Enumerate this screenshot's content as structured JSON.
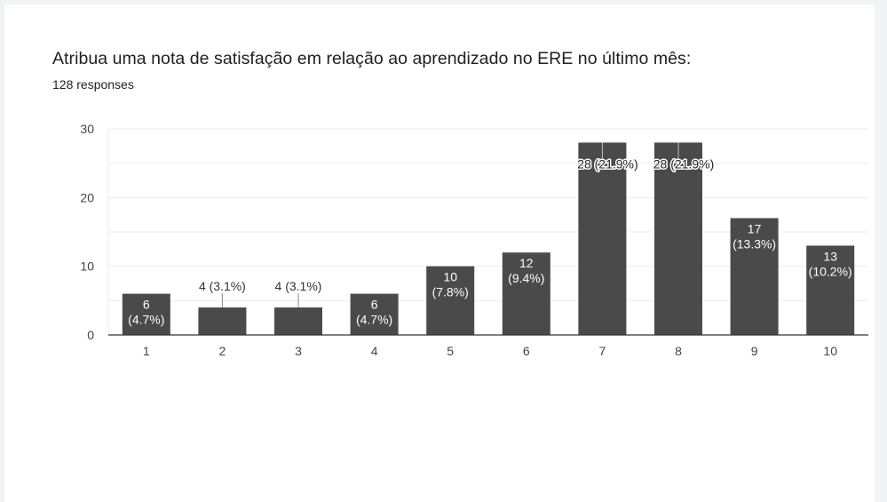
{
  "form_card": {
    "question_title": "Atribua uma nota de satisfação em relação ao aprendizado no ERE no último mês:",
    "response_count": "128 responses"
  },
  "chart_data": {
    "type": "bar",
    "title": "Atribua uma nota de satisfação em relação ao aprendizado no ERE no último mês:",
    "subtitle": "128 responses",
    "xlabel": "",
    "ylabel": "",
    "categories": [
      "1",
      "2",
      "3",
      "4",
      "5",
      "6",
      "7",
      "8",
      "9",
      "10"
    ],
    "values": [
      6,
      4,
      4,
      6,
      10,
      12,
      28,
      28,
      17,
      13
    ],
    "percentages": [
      "4.7%",
      "3.1%",
      "3.1%",
      "4.7%",
      "7.8%",
      "9.4%",
      "21.9%",
      "21.9%",
      "13.3%",
      "10.2%"
    ],
    "data_labels": [
      "6 (4.7%)",
      "4 (3.1%)",
      "4 (3.1%)",
      "6 (4.7%)",
      "10 (7.8%)",
      "12 (9.4%)",
      "28 (21.9%)",
      "28 (21.9%)",
      "17 (13.3%)",
      "13 (10.2%)"
    ],
    "ylim": [
      0,
      30
    ],
    "yticks": [
      0,
      10,
      20,
      30
    ],
    "minor_gridlines": [
      5,
      15,
      25
    ],
    "grid": true,
    "legend": "none",
    "bar_color": "#4a4a4a"
  }
}
